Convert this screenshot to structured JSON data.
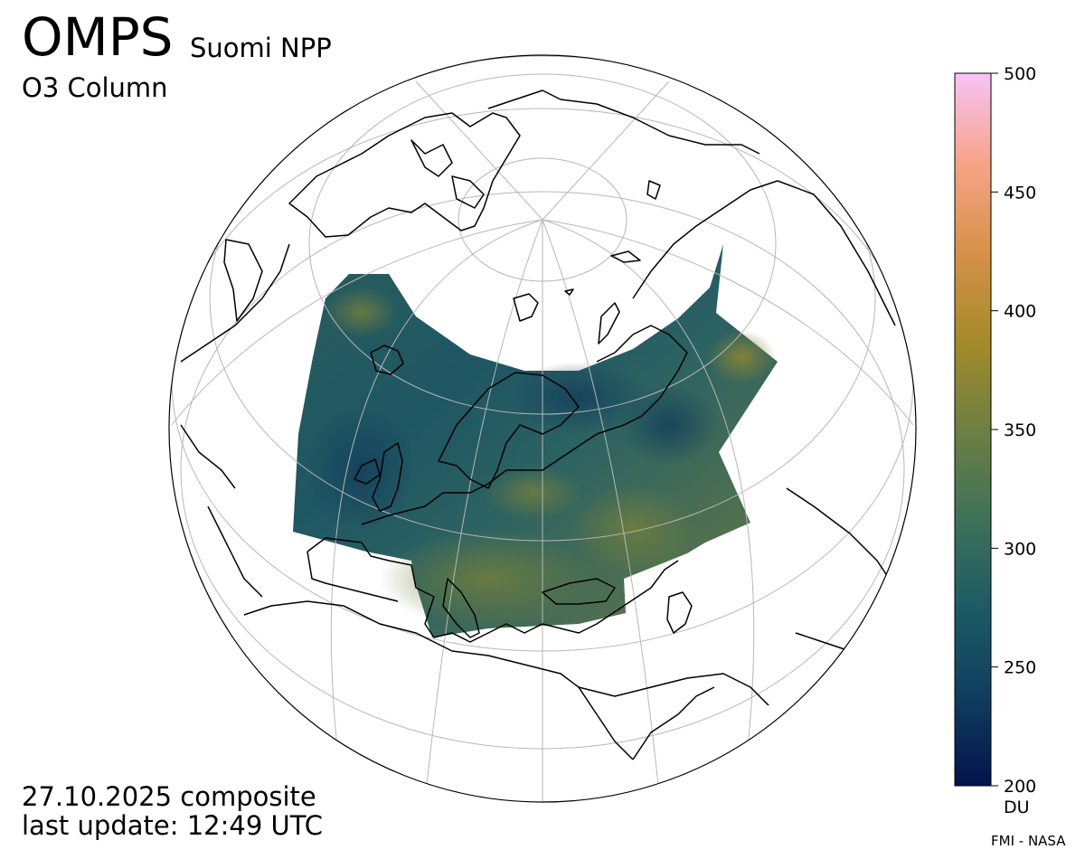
{
  "header": {
    "instrument": "OMPS",
    "satellite": "Suomi NPP",
    "parameter": "O3 Column"
  },
  "footer": {
    "date_line": "27.10.2025 composite",
    "update_line": "last update: 12:49 UTC",
    "credit": "FMI - NASA"
  },
  "colorbar": {
    "unit": "DU",
    "range": [
      200,
      500
    ],
    "ticks": [
      {
        "value": 200,
        "label": "200"
      },
      {
        "value": 250,
        "label": "250"
      },
      {
        "value": 300,
        "label": "300"
      },
      {
        "value": 350,
        "label": "350"
      },
      {
        "value": 400,
        "label": "400"
      },
      {
        "value": 450,
        "label": "450"
      },
      {
        "value": 500,
        "label": "500"
      }
    ],
    "colormap": [
      "#03134b",
      "#0f3e5f",
      "#1d5a64",
      "#3e7259",
      "#6e7f42",
      "#a58b2a",
      "#d79149",
      "#f7a488",
      "#f7c4f7"
    ]
  },
  "map": {
    "projection": "orthographic, centered over the North Atlantic / Europe",
    "ocean_color": "#ffffff",
    "coast_color": "#000000",
    "grid_color": "#b7b7b7",
    "data_typical_value_DU": 280
  }
}
